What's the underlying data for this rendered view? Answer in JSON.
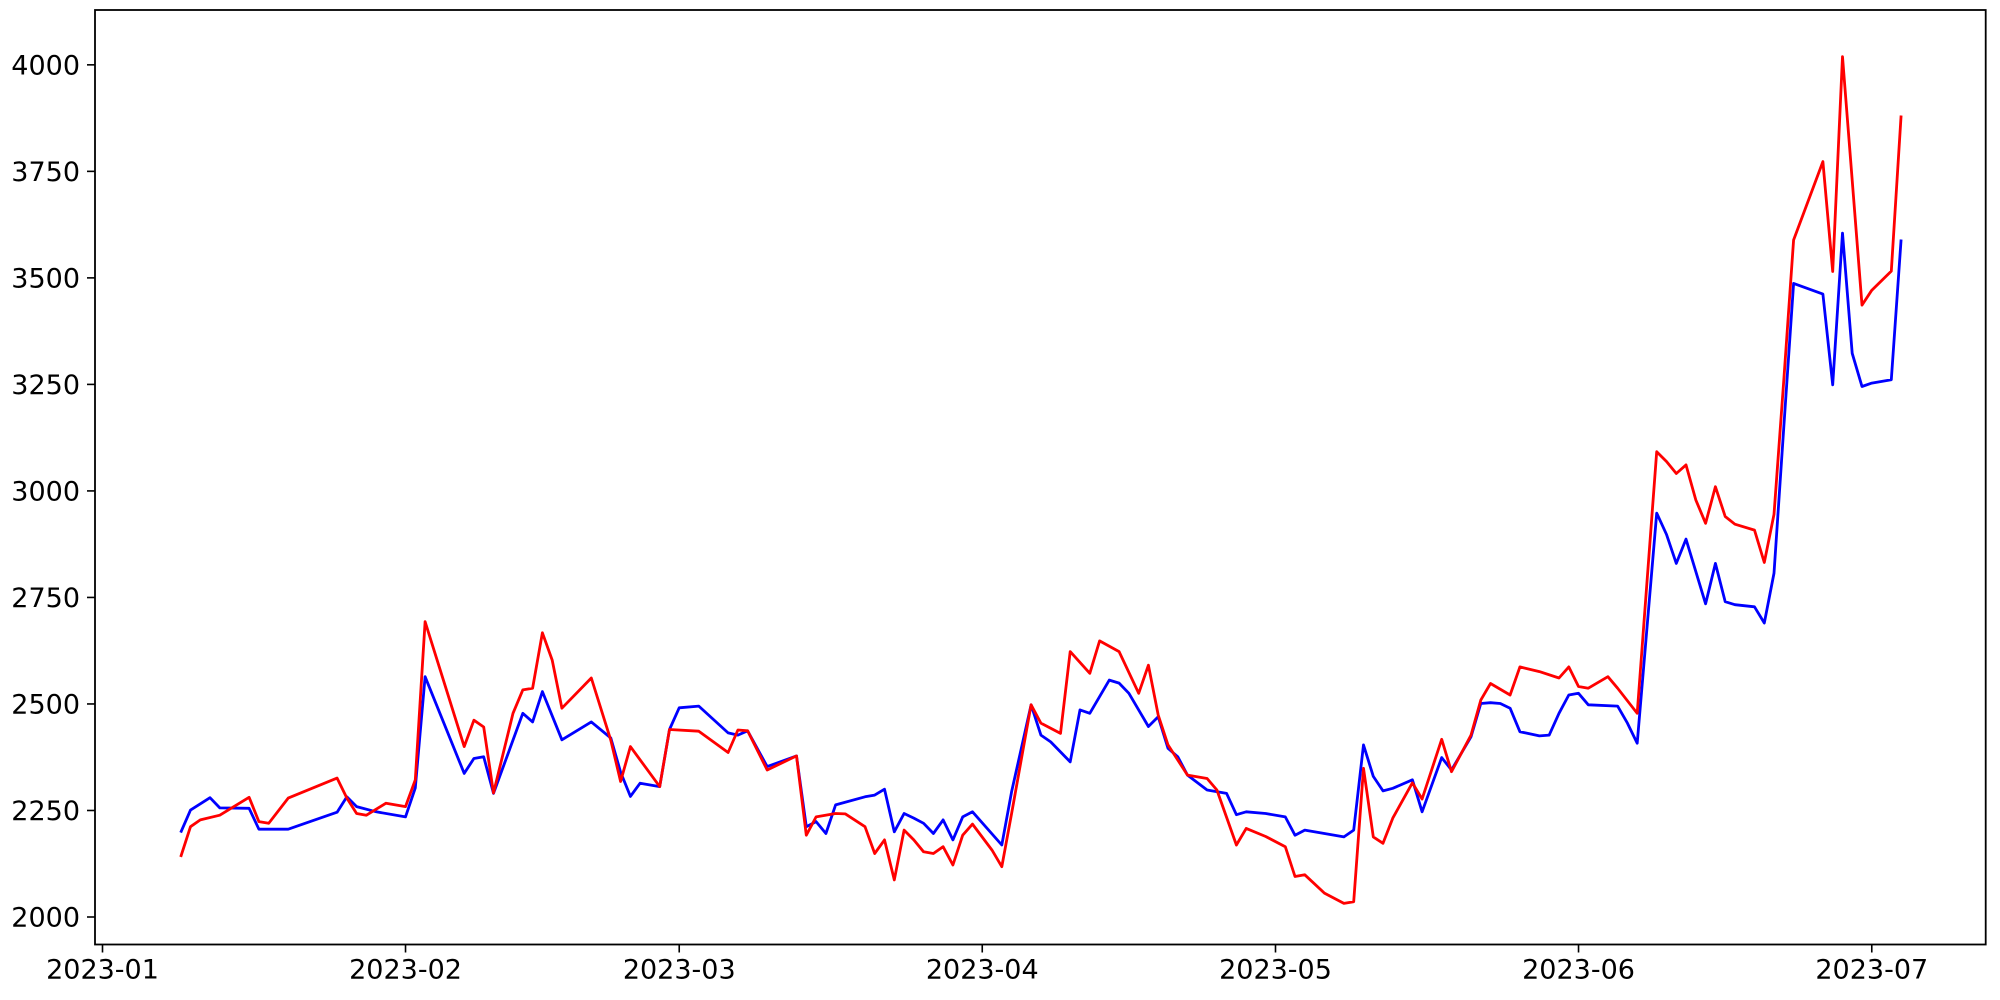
{
  "figure": {
    "background": "#ffffff",
    "axis_color": "#000000",
    "red_color": "#ff0000",
    "blue_color": "#0000ff"
  },
  "chart_data": {
    "type": "line",
    "title": "",
    "xlabel": "",
    "ylabel": "",
    "grid": false,
    "legend": false,
    "x_axis": {
      "tick_dates": [
        "2023-01-01",
        "2023-02-01",
        "2023-03-01",
        "2023-04-01",
        "2023-05-01",
        "2023-06-01",
        "2023-07-01"
      ],
      "tick_labels": [
        "2023-01",
        "2023-02",
        "2023-03",
        "2023-04",
        "2023-05",
        "2023-06",
        "2023-07"
      ]
    },
    "y_axis": {
      "tick_values": [
        2000,
        2250,
        2500,
        2750,
        3000,
        3250,
        3500,
        3750,
        4000
      ],
      "tick_labels": [
        "2000",
        "2250",
        "2500",
        "2750",
        "3000",
        "3250",
        "3500",
        "3750",
        "4000"
      ]
    },
    "ylim": [
      1937,
      4130
    ],
    "xlim": [
      "2022-12-31",
      "2023-07-12"
    ],
    "date_range": [
      "2023-01-09",
      "2023-07-04"
    ],
    "series": [
      {
        "name": "blue-series",
        "color": "#0000ff",
        "points": [
          [
            "2023-01-09",
            2198
          ],
          [
            "2023-01-10",
            2251
          ],
          [
            "2023-01-12",
            2280
          ],
          [
            "2023-01-13",
            2256
          ],
          [
            "2023-01-16",
            2255
          ],
          [
            "2023-01-17",
            2206
          ],
          [
            "2023-01-20",
            2206
          ],
          [
            "2023-01-25",
            2246
          ],
          [
            "2023-01-26",
            2282
          ],
          [
            "2023-01-27",
            2259
          ],
          [
            "2023-01-29",
            2247
          ],
          [
            "2023-02-01",
            2235
          ],
          [
            "2023-02-02",
            2303
          ],
          [
            "2023-02-03",
            2564
          ],
          [
            "2023-02-07",
            2337
          ],
          [
            "2023-02-08",
            2372
          ],
          [
            "2023-02-09",
            2376
          ],
          [
            "2023-02-10",
            2290
          ],
          [
            "2023-02-13",
            2478
          ],
          [
            "2023-02-14",
            2458
          ],
          [
            "2023-02-15",
            2529
          ],
          [
            "2023-02-17",
            2416
          ],
          [
            "2023-02-20",
            2458
          ],
          [
            "2023-02-22",
            2420
          ],
          [
            "2023-02-23",
            2340
          ],
          [
            "2023-02-24",
            2283
          ],
          [
            "2023-02-25",
            2314
          ],
          [
            "2023-02-27",
            2306
          ],
          [
            "2023-02-28",
            2440
          ],
          [
            "2023-03-01",
            2491
          ],
          [
            "2023-03-03",
            2495
          ],
          [
            "2023-03-06",
            2432
          ],
          [
            "2023-03-07",
            2427
          ],
          [
            "2023-03-08",
            2437
          ],
          [
            "2023-03-10",
            2353
          ],
          [
            "2023-03-13",
            2378
          ],
          [
            "2023-03-14",
            2212
          ],
          [
            "2023-03-15",
            2224
          ],
          [
            "2023-03-16",
            2196
          ],
          [
            "2023-03-17",
            2263
          ],
          [
            "2023-03-20",
            2282
          ],
          [
            "2023-03-21",
            2286
          ],
          [
            "2023-03-22",
            2300
          ],
          [
            "2023-03-23",
            2200
          ],
          [
            "2023-03-24",
            2243
          ],
          [
            "2023-03-25",
            2232
          ],
          [
            "2023-03-26",
            2220
          ],
          [
            "2023-03-27",
            2196
          ],
          [
            "2023-03-28",
            2228
          ],
          [
            "2023-03-29",
            2181
          ],
          [
            "2023-03-30",
            2235
          ],
          [
            "2023-03-31",
            2247
          ],
          [
            "2023-04-03",
            2169
          ],
          [
            "2023-04-04",
            2294
          ],
          [
            "2023-04-06",
            2498
          ],
          [
            "2023-04-07",
            2427
          ],
          [
            "2023-04-08",
            2411
          ],
          [
            "2023-04-10",
            2364
          ],
          [
            "2023-04-11",
            2486
          ],
          [
            "2023-04-12",
            2478
          ],
          [
            "2023-04-14",
            2556
          ],
          [
            "2023-04-15",
            2549
          ],
          [
            "2023-04-16",
            2525
          ],
          [
            "2023-04-18",
            2447
          ],
          [
            "2023-04-19",
            2470
          ],
          [
            "2023-04-20",
            2396
          ],
          [
            "2023-04-21",
            2376
          ],
          [
            "2023-04-22",
            2333
          ],
          [
            "2023-04-24",
            2298
          ],
          [
            "2023-04-26",
            2290
          ],
          [
            "2023-04-27",
            2240
          ],
          [
            "2023-04-28",
            2247
          ],
          [
            "2023-04-30",
            2243
          ],
          [
            "2023-05-02",
            2235
          ],
          [
            "2023-05-03",
            2192
          ],
          [
            "2023-05-04",
            2204
          ],
          [
            "2023-05-06",
            2196
          ],
          [
            "2023-05-08",
            2188
          ],
          [
            "2023-05-09",
            2204
          ],
          [
            "2023-05-10",
            2404
          ],
          [
            "2023-05-11",
            2330
          ],
          [
            "2023-05-12",
            2296
          ],
          [
            "2023-05-13",
            2302
          ],
          [
            "2023-05-15",
            2322
          ],
          [
            "2023-05-16",
            2247
          ],
          [
            "2023-05-18",
            2374
          ],
          [
            "2023-05-19",
            2345
          ],
          [
            "2023-05-21",
            2423
          ],
          [
            "2023-05-22",
            2501
          ],
          [
            "2023-05-23",
            2503
          ],
          [
            "2023-05-24",
            2501
          ],
          [
            "2023-05-25",
            2490
          ],
          [
            "2023-05-26",
            2435
          ],
          [
            "2023-05-28",
            2425
          ],
          [
            "2023-05-29",
            2427
          ],
          [
            "2023-05-30",
            2478
          ],
          [
            "2023-05-31",
            2521
          ],
          [
            "2023-06-01",
            2525
          ],
          [
            "2023-06-02",
            2498
          ],
          [
            "2023-06-05",
            2495
          ],
          [
            "2023-06-06",
            2455
          ],
          [
            "2023-06-07",
            2408
          ],
          [
            "2023-06-09",
            2948
          ],
          [
            "2023-06-10",
            2898
          ],
          [
            "2023-06-11",
            2830
          ],
          [
            "2023-06-12",
            2887
          ],
          [
            "2023-06-14",
            2735
          ],
          [
            "2023-06-15",
            2830
          ],
          [
            "2023-06-16",
            2740
          ],
          [
            "2023-06-17",
            2733
          ],
          [
            "2023-06-19",
            2728
          ],
          [
            "2023-06-20",
            2690
          ],
          [
            "2023-06-21",
            2807
          ],
          [
            "2023-06-22",
            3150
          ],
          [
            "2023-06-23",
            3487
          ],
          [
            "2023-06-26",
            3462
          ],
          [
            "2023-06-27",
            3249
          ],
          [
            "2023-06-28",
            3605
          ],
          [
            "2023-06-29",
            3323
          ],
          [
            "2023-06-30",
            3245
          ],
          [
            "2023-07-01",
            3253
          ],
          [
            "2023-07-03",
            3261
          ],
          [
            "2023-07-04",
            3590
          ]
        ]
      },
      {
        "name": "red-series",
        "color": "#ff0000",
        "points": [
          [
            "2023-01-09",
            2141
          ],
          [
            "2023-01-10",
            2212
          ],
          [
            "2023-01-11",
            2228
          ],
          [
            "2023-01-13",
            2239
          ],
          [
            "2023-01-16",
            2281
          ],
          [
            "2023-01-17",
            2224
          ],
          [
            "2023-01-18",
            2220
          ],
          [
            "2023-01-20",
            2279
          ],
          [
            "2023-01-25",
            2326
          ],
          [
            "2023-01-26",
            2279
          ],
          [
            "2023-01-27",
            2243
          ],
          [
            "2023-01-28",
            2239
          ],
          [
            "2023-01-30",
            2267
          ],
          [
            "2023-02-01",
            2259
          ],
          [
            "2023-02-02",
            2322
          ],
          [
            "2023-02-03",
            2693
          ],
          [
            "2023-02-07",
            2400
          ],
          [
            "2023-02-08",
            2462
          ],
          [
            "2023-02-09",
            2446
          ],
          [
            "2023-02-10",
            2291
          ],
          [
            "2023-02-12",
            2478
          ],
          [
            "2023-02-13",
            2533
          ],
          [
            "2023-02-14",
            2537
          ],
          [
            "2023-02-15",
            2667
          ],
          [
            "2023-02-16",
            2603
          ],
          [
            "2023-02-17",
            2490
          ],
          [
            "2023-02-20",
            2561
          ],
          [
            "2023-02-22",
            2415
          ],
          [
            "2023-02-23",
            2318
          ],
          [
            "2023-02-24",
            2400
          ],
          [
            "2023-02-27",
            2306
          ],
          [
            "2023-02-28",
            2440
          ],
          [
            "2023-03-03",
            2436
          ],
          [
            "2023-03-06",
            2386
          ],
          [
            "2023-03-07",
            2439
          ],
          [
            "2023-03-08",
            2437
          ],
          [
            "2023-03-10",
            2345
          ],
          [
            "2023-03-13",
            2378
          ],
          [
            "2023-03-14",
            2192
          ],
          [
            "2023-03-15",
            2235
          ],
          [
            "2023-03-17",
            2243
          ],
          [
            "2023-03-18",
            2242
          ],
          [
            "2023-03-20",
            2212
          ],
          [
            "2023-03-21",
            2149
          ],
          [
            "2023-03-22",
            2181
          ],
          [
            "2023-03-23",
            2087
          ],
          [
            "2023-03-24",
            2204
          ],
          [
            "2023-03-25",
            2181
          ],
          [
            "2023-03-26",
            2153
          ],
          [
            "2023-03-27",
            2149
          ],
          [
            "2023-03-28",
            2165
          ],
          [
            "2023-03-29",
            2122
          ],
          [
            "2023-03-30",
            2192
          ],
          [
            "2023-03-31",
            2218
          ],
          [
            "2023-04-02",
            2157
          ],
          [
            "2023-04-03",
            2118
          ],
          [
            "2023-04-04",
            2243
          ],
          [
            "2023-04-06",
            2498
          ],
          [
            "2023-04-07",
            2455
          ],
          [
            "2023-04-09",
            2431
          ],
          [
            "2023-04-10",
            2623
          ],
          [
            "2023-04-12",
            2572
          ],
          [
            "2023-04-13",
            2648
          ],
          [
            "2023-04-15",
            2623
          ],
          [
            "2023-04-17",
            2525
          ],
          [
            "2023-04-18",
            2591
          ],
          [
            "2023-04-19",
            2474
          ],
          [
            "2023-04-20",
            2404
          ],
          [
            "2023-04-22",
            2333
          ],
          [
            "2023-04-24",
            2325
          ],
          [
            "2023-04-25",
            2298
          ],
          [
            "2023-04-27",
            2169
          ],
          [
            "2023-04-28",
            2208
          ],
          [
            "2023-04-30",
            2189
          ],
          [
            "2023-05-02",
            2165
          ],
          [
            "2023-05-03",
            2095
          ],
          [
            "2023-05-04",
            2099
          ],
          [
            "2023-05-06",
            2056
          ],
          [
            "2023-05-08",
            2032
          ],
          [
            "2023-05-09",
            2036
          ],
          [
            "2023-05-10",
            2349
          ],
          [
            "2023-05-11",
            2188
          ],
          [
            "2023-05-12",
            2173
          ],
          [
            "2023-05-13",
            2232
          ],
          [
            "2023-05-15",
            2315
          ],
          [
            "2023-05-16",
            2277
          ],
          [
            "2023-05-18",
            2417
          ],
          [
            "2023-05-19",
            2341
          ],
          [
            "2023-05-21",
            2427
          ],
          [
            "2023-05-22",
            2509
          ],
          [
            "2023-05-23",
            2548
          ],
          [
            "2023-05-25",
            2521
          ],
          [
            "2023-05-26",
            2587
          ],
          [
            "2023-05-28",
            2576
          ],
          [
            "2023-05-30",
            2561
          ],
          [
            "2023-05-31",
            2587
          ],
          [
            "2023-06-01",
            2541
          ],
          [
            "2023-06-02",
            2537
          ],
          [
            "2023-06-04",
            2564
          ],
          [
            "2023-06-05",
            2537
          ],
          [
            "2023-06-07",
            2478
          ],
          [
            "2023-06-09",
            3092
          ],
          [
            "2023-06-10",
            3069
          ],
          [
            "2023-06-11",
            3041
          ],
          [
            "2023-06-12",
            3061
          ],
          [
            "2023-06-13",
            2979
          ],
          [
            "2023-06-14",
            2924
          ],
          [
            "2023-06-15",
            3010
          ],
          [
            "2023-06-16",
            2940
          ],
          [
            "2023-06-17",
            2922
          ],
          [
            "2023-06-19",
            2908
          ],
          [
            "2023-06-20",
            2832
          ],
          [
            "2023-06-21",
            2945
          ],
          [
            "2023-06-22",
            3260
          ],
          [
            "2023-06-23",
            3589
          ],
          [
            "2023-06-26",
            3773
          ],
          [
            "2023-06-27",
            3515
          ],
          [
            "2023-06-28",
            4019
          ],
          [
            "2023-06-30",
            3436
          ],
          [
            "2023-07-01",
            3471
          ],
          [
            "2023-07-03",
            3516
          ],
          [
            "2023-07-04",
            3881
          ]
        ]
      }
    ]
  }
}
